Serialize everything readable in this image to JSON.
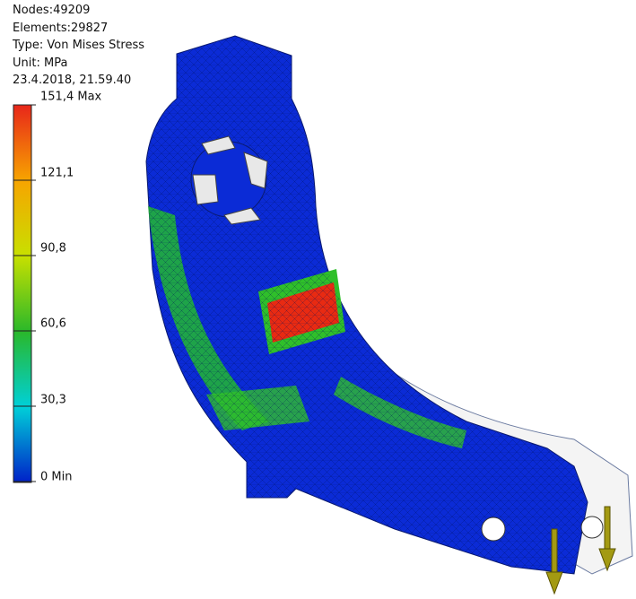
{
  "info": {
    "nodes": "Nodes:49209",
    "elements": "Elements:29827",
    "type": "Type: Von Mises Stress",
    "unit": "Unit: MPa",
    "timestamp": "23.4.2018, 21.59.40"
  },
  "legend": {
    "labels": [
      "151,4 Max",
      "121,1",
      "90,8",
      "60,6",
      "30,3",
      "0 Min"
    ]
  }
}
